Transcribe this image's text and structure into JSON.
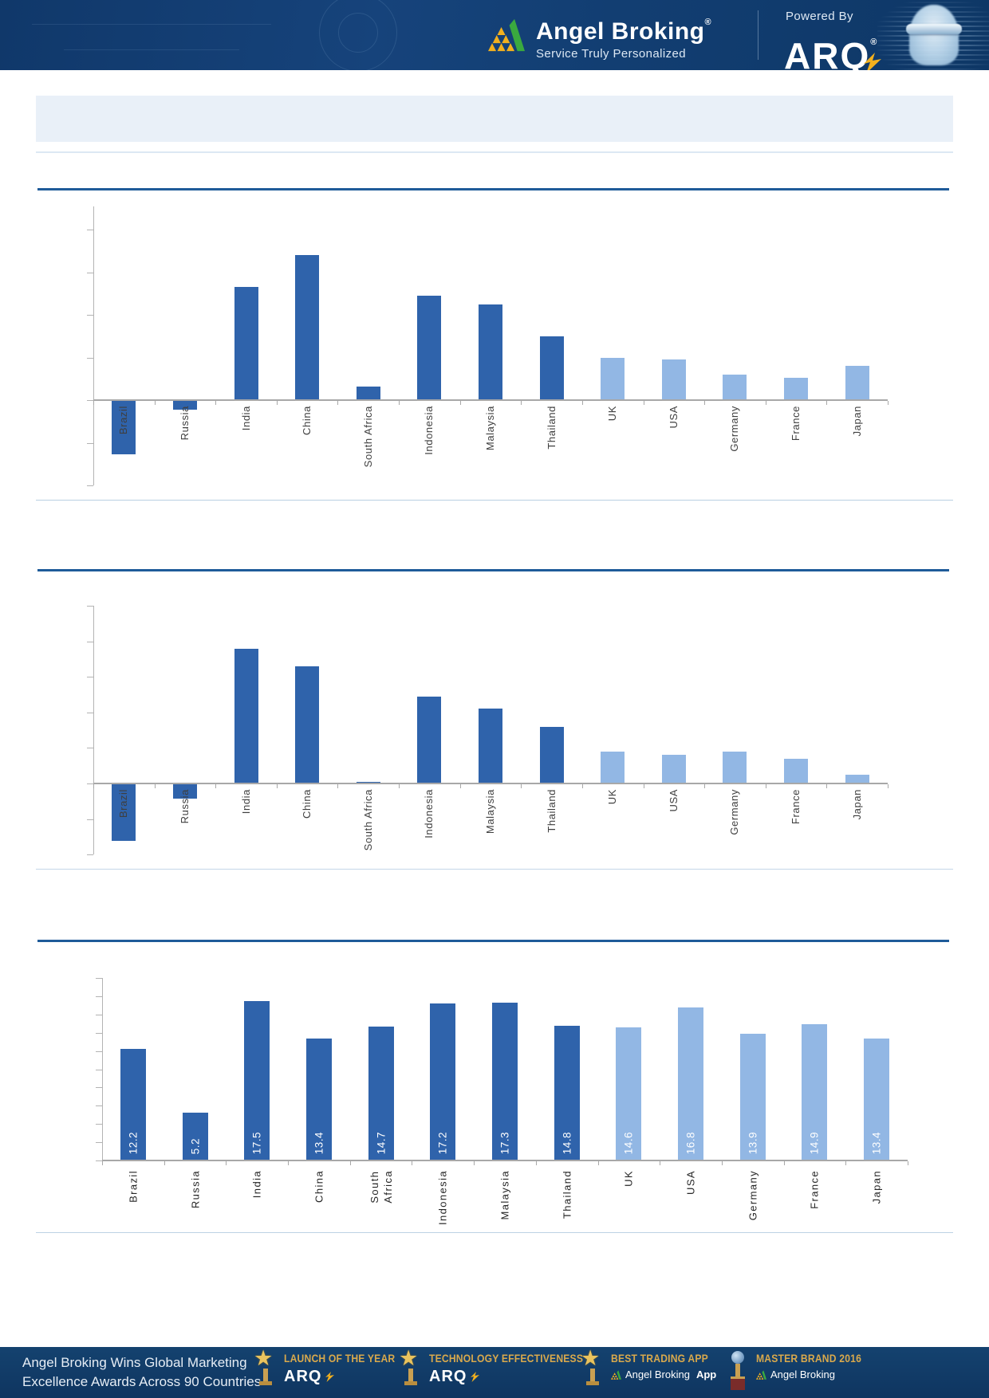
{
  "header": {
    "brand": "Angel Broking",
    "brand_reg": "®",
    "tagline": "Service Truly Personalized",
    "powered_by": "Powered By",
    "arq": "ARQ",
    "arq_reg": "®"
  },
  "title_bar": {
    "text": ""
  },
  "chart_data": [
    {
      "type": "bar",
      "title": "",
      "xlabel": "",
      "ylabel": "",
      "categories": [
        "Brazil",
        "Russia",
        "India",
        "China",
        "South Africa",
        "Indonesia",
        "Malaysia",
        "Thailand",
        "UK",
        "USA",
        "Germany",
        "France",
        "Japan"
      ],
      "values": [
        -2.5,
        -0.4,
        5.3,
        6.8,
        0.65,
        4.9,
        4.5,
        3.0,
        2.0,
        1.9,
        1.2,
        1.05,
        1.6
      ],
      "values_estimated_from_pixels": true,
      "ylim": [
        -4,
        8
      ],
      "yticks": [
        -4,
        -2,
        0,
        2,
        4,
        6,
        8
      ],
      "ytick_labels_visible": false,
      "data_labels_visible": false,
      "grid": false,
      "legend": "none",
      "bar_colors": [
        "#2f63ab",
        "#2f63ab",
        "#2f63ab",
        "#2f63ab",
        "#2f63ab",
        "#2f63ab",
        "#2f63ab",
        "#2f63ab",
        "#92b7e4",
        "#92b7e4",
        "#92b7e4",
        "#92b7e4",
        "#92b7e4"
      ]
    },
    {
      "type": "bar",
      "title": "",
      "xlabel": "",
      "ylabel": "",
      "categories": [
        "Brazil",
        "Russia",
        "India",
        "China",
        "South Africa",
        "Indonesia",
        "Malaysia",
        "Thailand",
        "UK",
        "USA",
        "Germany",
        "France",
        "Japan"
      ],
      "values": [
        -1.6,
        -0.4,
        3.8,
        3.3,
        0.05,
        2.45,
        2.1,
        1.6,
        0.9,
        0.8,
        0.9,
        0.7,
        0.25
      ],
      "values_estimated_from_pixels": true,
      "ylim": [
        -2,
        5
      ],
      "yticks": [
        -2,
        -1,
        0,
        1,
        2,
        3,
        4,
        5
      ],
      "ytick_labels_visible": false,
      "data_labels_visible": false,
      "grid": false,
      "legend": "none",
      "bar_colors": [
        "#2f63ab",
        "#2f63ab",
        "#2f63ab",
        "#2f63ab",
        "#2f63ab",
        "#2f63ab",
        "#2f63ab",
        "#2f63ab",
        "#92b7e4",
        "#92b7e4",
        "#92b7e4",
        "#92b7e4",
        "#92b7e4"
      ]
    },
    {
      "type": "bar",
      "title": "",
      "xlabel": "",
      "ylabel": "",
      "categories": [
        "Brazil",
        "Russia",
        "India",
        "China",
        "South Africa",
        "Indonesia",
        "Malaysia",
        "Thailand",
        "UK",
        "USA",
        "Germany",
        "France",
        "Japan"
      ],
      "values": [
        12.2,
        5.2,
        17.5,
        13.4,
        14.7,
        17.2,
        17.3,
        14.8,
        14.6,
        16.8,
        13.9,
        14.9,
        13.4
      ],
      "data_labels": [
        "12.2",
        "5.2",
        "17.5",
        "13.4",
        "14.7",
        "17.2",
        "17.3",
        "14.8",
        "14.6",
        "16.8",
        "13.9",
        "14.9",
        "13.4"
      ],
      "data_labels_visible": true,
      "ylim": [
        0,
        20
      ],
      "yticks": [
        0,
        2,
        4,
        6,
        8,
        10,
        12,
        14,
        16,
        18,
        20
      ],
      "ytick_labels_visible": false,
      "grid": false,
      "legend": "none",
      "bar_colors": [
        "#2f63ab",
        "#2f63ab",
        "#2f63ab",
        "#2f63ab",
        "#2f63ab",
        "#2f63ab",
        "#2f63ab",
        "#2f63ab",
        "#92b7e4",
        "#92b7e4",
        "#92b7e4",
        "#92b7e4",
        "#92b7e4"
      ]
    }
  ],
  "footer": {
    "headline_line1": "Angel Broking Wins Global Marketing",
    "headline_line2": "Excellence Awards Across 90 Countries",
    "awards": [
      {
        "title": "LAUNCH OF THE YEAR",
        "subtitle": "ARQ",
        "sub_style": "arq",
        "icon": "star-trophy-icon"
      },
      {
        "title": "TECHNOLOGY EFFECTIVENESS",
        "subtitle": "ARQ",
        "sub_style": "arq",
        "icon": "star-trophy-icon"
      },
      {
        "title": "BEST TRADING APP",
        "subtitle": "Angel Broking",
        "subtitle_bold": "App",
        "sub_style": "brand",
        "icon": "star-trophy-icon"
      },
      {
        "title": "MASTER BRAND 2016",
        "subtitle": "Angel Broking",
        "subtitle_bold": "",
        "sub_style": "brand",
        "icon": "globe-trophy-icon"
      }
    ]
  },
  "colors": {
    "emerging_bar": "#2f63ab",
    "developed_bar": "#92b7e4",
    "rule_dark": "#1f5b99",
    "rule_light": "#dce8f3",
    "title_box": "#e9f0f8",
    "header_bg": "#16437b",
    "footer_bg": "#14426f",
    "award_gold": "#d9a94c"
  }
}
